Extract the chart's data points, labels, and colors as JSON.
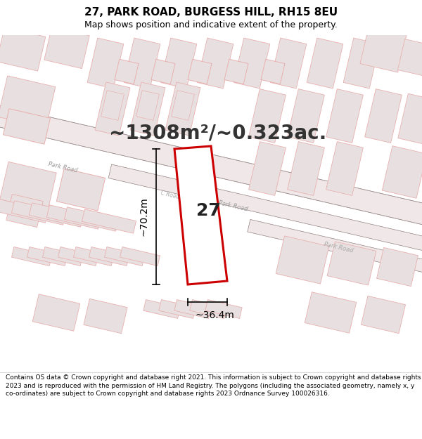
{
  "title": "27, PARK ROAD, BURGESS HILL, RH15 8EU",
  "subtitle": "Map shows position and indicative extent of the property.",
  "area_text": "~1308m²/~0.323ac.",
  "dim_width": "~36.4m",
  "dim_height": "~70.2m",
  "plot_number": "27",
  "footer_text": "Contains OS data © Crown copyright and database right 2021. This information is subject to Crown copyright and database rights 2023 and is reproduced with the permission of HM Land Registry. The polygons (including the associated geometry, namely x, y co-ordinates) are subject to Crown copyright and database rights 2023 Ordnance Survey 100026316.",
  "bg_color": "#ffffff",
  "map_bg_color": "#ffffff",
  "plot_fill": "#ffffff",
  "plot_edge_color": "#cc0000",
  "building_outline_color": "#e8b0b0",
  "building_fill_color": "#e8e0e0",
  "road_fill_color": "#f0e8e8",
  "road_line_color": "#c8a8a8",
  "road_text_color": "#aaaaaa",
  "title_color": "#000000",
  "area_text_color": "#333333",
  "footer_color": "#000000",
  "map_tilt_deg": -13,
  "title_fontsize": 11,
  "subtitle_fontsize": 9,
  "area_fontsize": 20,
  "plot_label_fontsize": 22,
  "dim_fontsize": 10,
  "footer_fontsize": 6.5
}
